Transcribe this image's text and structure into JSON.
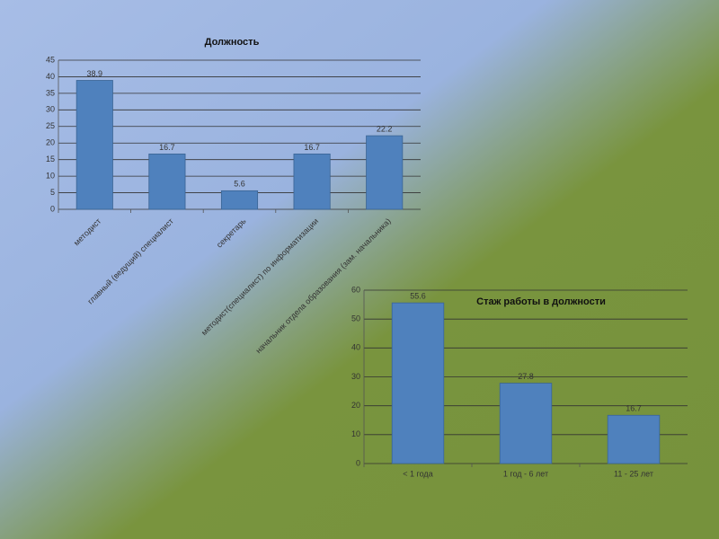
{
  "chart_data": [
    {
      "type": "bar",
      "title": "Должность",
      "categories": [
        "методист",
        "главный (ведущий) специалист",
        "секретарь",
        "методист(специалист) по информатизации",
        "начальник отдела образования (зам. начальника)"
      ],
      "values": [
        38.9,
        16.7,
        5.6,
        16.7,
        22.2
      ],
      "color": "#4f81bd",
      "ylim": [
        0,
        45
      ],
      "yticks": [
        0,
        5,
        10,
        15,
        20,
        25,
        30,
        35,
        40,
        45
      ],
      "grid": true,
      "rotate_labels": true
    },
    {
      "type": "bar",
      "title": "Стаж работы в должности",
      "categories": [
        "< 1 года",
        "1 год - 6 лет",
        "11 - 25 лет"
      ],
      "values": [
        55.6,
        27.8,
        16.7
      ],
      "color": "#4f81bd",
      "ylim": [
        0,
        60
      ],
      "yticks": [
        0,
        10,
        20,
        30,
        40,
        50,
        60
      ],
      "grid": true,
      "rotate_labels": false
    }
  ]
}
